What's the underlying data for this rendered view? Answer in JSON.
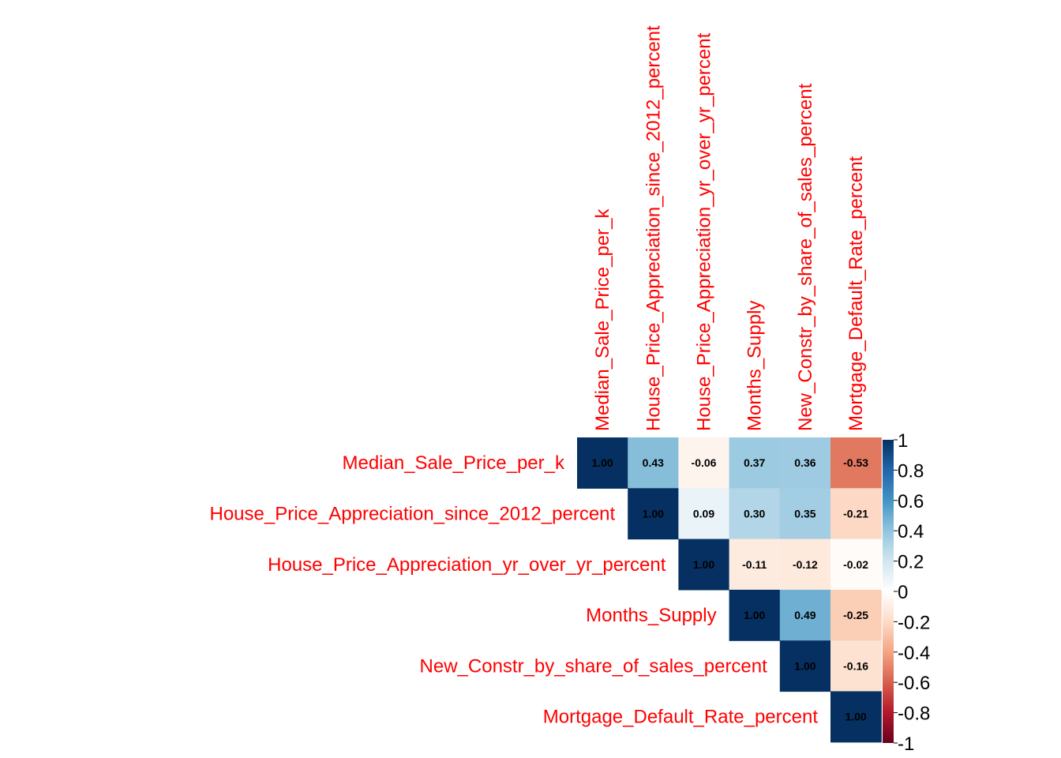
{
  "chart_data": {
    "type": "heatmap",
    "variables": [
      "Median_Sale_Price_per_k",
      "House_Price_Appreciation_since_2012_percent",
      "House_Price_Appreciation_yr_over_yr_percent",
      "Months_Supply",
      "New_Constr_by_share_of_sales_percent",
      "Mortgage_Default_Rate_percent"
    ],
    "matrix": [
      [
        1.0,
        0.43,
        -0.06,
        0.37,
        0.36,
        -0.53
      ],
      [
        null,
        1.0,
        0.09,
        0.3,
        0.35,
        -0.21
      ],
      [
        null,
        null,
        1.0,
        -0.11,
        -0.12,
        -0.02
      ],
      [
        null,
        null,
        null,
        1.0,
        0.49,
        -0.25
      ],
      [
        null,
        null,
        null,
        null,
        1.0,
        -0.16
      ],
      [
        null,
        null,
        null,
        null,
        null,
        1.0
      ]
    ],
    "triangle": "upper",
    "number_format": "2 decimals",
    "label_color": "#ff0000",
    "colorbar": {
      "range": [
        -1,
        1
      ],
      "ticks": [
        "1",
        "0.8",
        "0.6",
        "0.4",
        "0.2",
        "0",
        "-0.2",
        "-0.4",
        "-0.6",
        "-0.8",
        "-1"
      ],
      "placement": "right",
      "colors": [
        "#67001F",
        "#B2182B",
        "#D6604D",
        "#F4A582",
        "#FDDBC7",
        "#FFFFFF",
        "#D1E5F0",
        "#92C5DE",
        "#4393C3",
        "#2166AC",
        "#053061"
      ]
    }
  }
}
